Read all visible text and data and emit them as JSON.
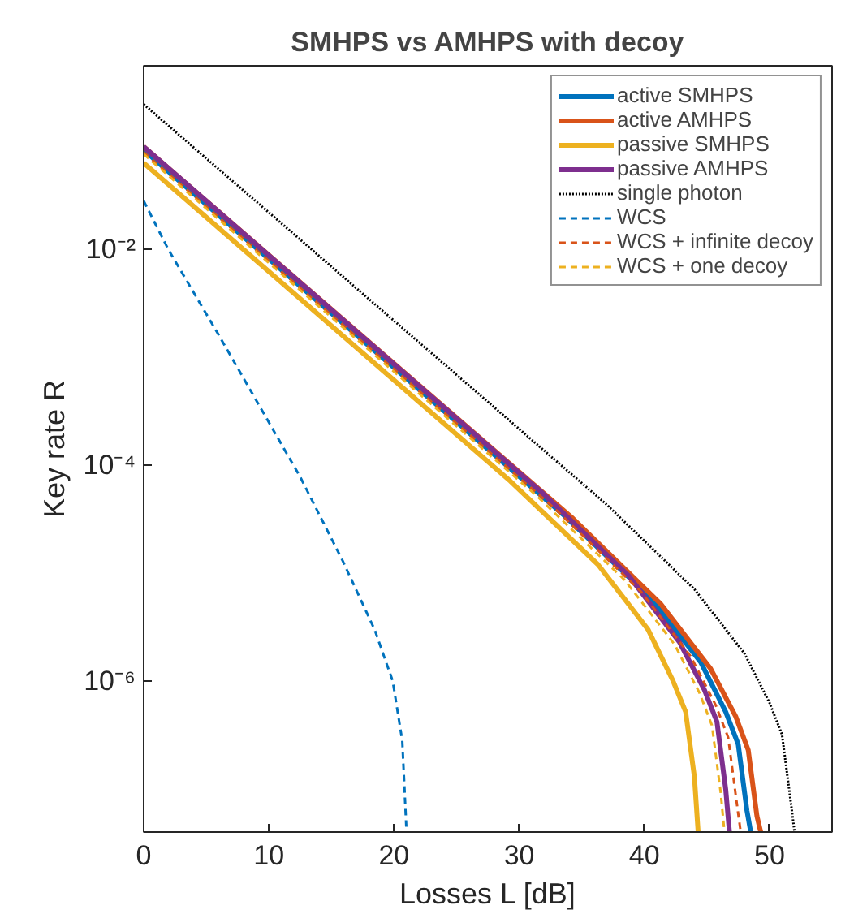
{
  "chart_data": {
    "type": "line",
    "title": "SMHPS vs AMHPS with decoy",
    "xlabel": "Losses L [dB]",
    "ylabel": "Key rate R",
    "log": "y",
    "grid": false,
    "legend": "top right",
    "marker": "none",
    "xlim": [
      0,
      55
    ],
    "xticks": [
      0,
      10,
      20,
      30,
      40,
      50
    ],
    "ylim": [
      4e-08,
      0.5
    ],
    "yticks": [
      {
        "value": 0.01,
        "label": "10⁻²"
      },
      {
        "value": 0.0001,
        "label": "10⁻⁴"
      },
      {
        "value": 1e-06,
        "label": "10⁻⁶"
      }
    ],
    "series": [
      {
        "name": "active SMHPS",
        "color": "#0072bd",
        "line_style": "solid",
        "x": [
          0,
          33.5,
          40.5,
          44.5,
          46.5,
          47.5,
          48.2,
          48.5
        ],
        "values": [
          0.083,
          3.5e-05,
          5.9e-06,
          1.5e-06,
          5.2e-07,
          2.6e-07,
          6.3e-08,
          4e-08
        ]
      },
      {
        "name": "active AMHPS",
        "color": "#d95319",
        "line_style": "solid",
        "x": [
          0,
          34.3,
          41.3,
          45.3,
          47.3,
          48.3,
          49.0,
          49.3
        ],
        "values": [
          0.089,
          3.2e-05,
          5.2e-06,
          1.3e-06,
          4.7e-07,
          2.3e-07,
          5.6e-08,
          4e-08
        ]
      },
      {
        "name": "passive SMHPS",
        "color": "#edb120",
        "line_style": "solid",
        "x": [
          0,
          29.3,
          36.3,
          40.3,
          42.3,
          43.3,
          44.0,
          44.3
        ],
        "values": [
          0.063,
          7.1e-05,
          1.2e-05,
          3e-06,
          1e-06,
          5.2e-07,
          1.3e-07,
          4e-08
        ]
      },
      {
        "name": "passive AMHPS",
        "color": "#7e2f8e",
        "line_style": "solid",
        "x": [
          0,
          31.8,
          38.8,
          42.8,
          44.8,
          45.8,
          46.5,
          46.8
        ],
        "values": [
          0.089,
          5.6e-05,
          9.3e-06,
          2.3e-06,
          8.3e-07,
          4.2e-07,
          1e-07,
          4e-08
        ]
      },
      {
        "name": "single photon",
        "color": "#000000",
        "line_style": "dotted",
        "x": [
          0,
          37,
          44,
          48,
          50,
          51,
          51.7,
          52
        ],
        "values": [
          0.22,
          4.3e-05,
          7.1e-06,
          1.8e-06,
          6.3e-07,
          3.2e-07,
          7.6e-08,
          4e-08
        ]
      },
      {
        "name": "WCS",
        "color": "#0072bd",
        "line_style": "dashed",
        "x": [
          0,
          2,
          6,
          12.5,
          15.9,
          18.45,
          19.9,
          20.66,
          21.0
        ],
        "values": [
          0.028,
          0.0098,
          0.0016,
          7.8e-05,
          1.3e-05,
          3e-06,
          1e-06,
          2.8e-07,
          4e-08
        ]
      },
      {
        "name": "WCS + infinite decoy",
        "color": "#d95319",
        "line_style": "dashed",
        "x": [
          0,
          32.7,
          39.7,
          43.7,
          45.7,
          46.7,
          47.4,
          47.7
        ],
        "values": [
          0.079,
          4.1e-05,
          6.8e-06,
          1.7e-06,
          6e-07,
          3e-07,
          7.2e-08,
          4e-08
        ]
      },
      {
        "name": "WCS + one decoy",
        "color": "#edb120",
        "line_style": "dashed",
        "x": [
          0,
          31.4,
          38.4,
          42.4,
          44.4,
          45.4,
          46.1,
          46.4
        ],
        "values": [
          0.076,
          5.2e-05,
          8.7e-06,
          2.2e-06,
          7.8e-07,
          3.9e-07,
          9.3e-08,
          4e-08
        ]
      }
    ]
  }
}
